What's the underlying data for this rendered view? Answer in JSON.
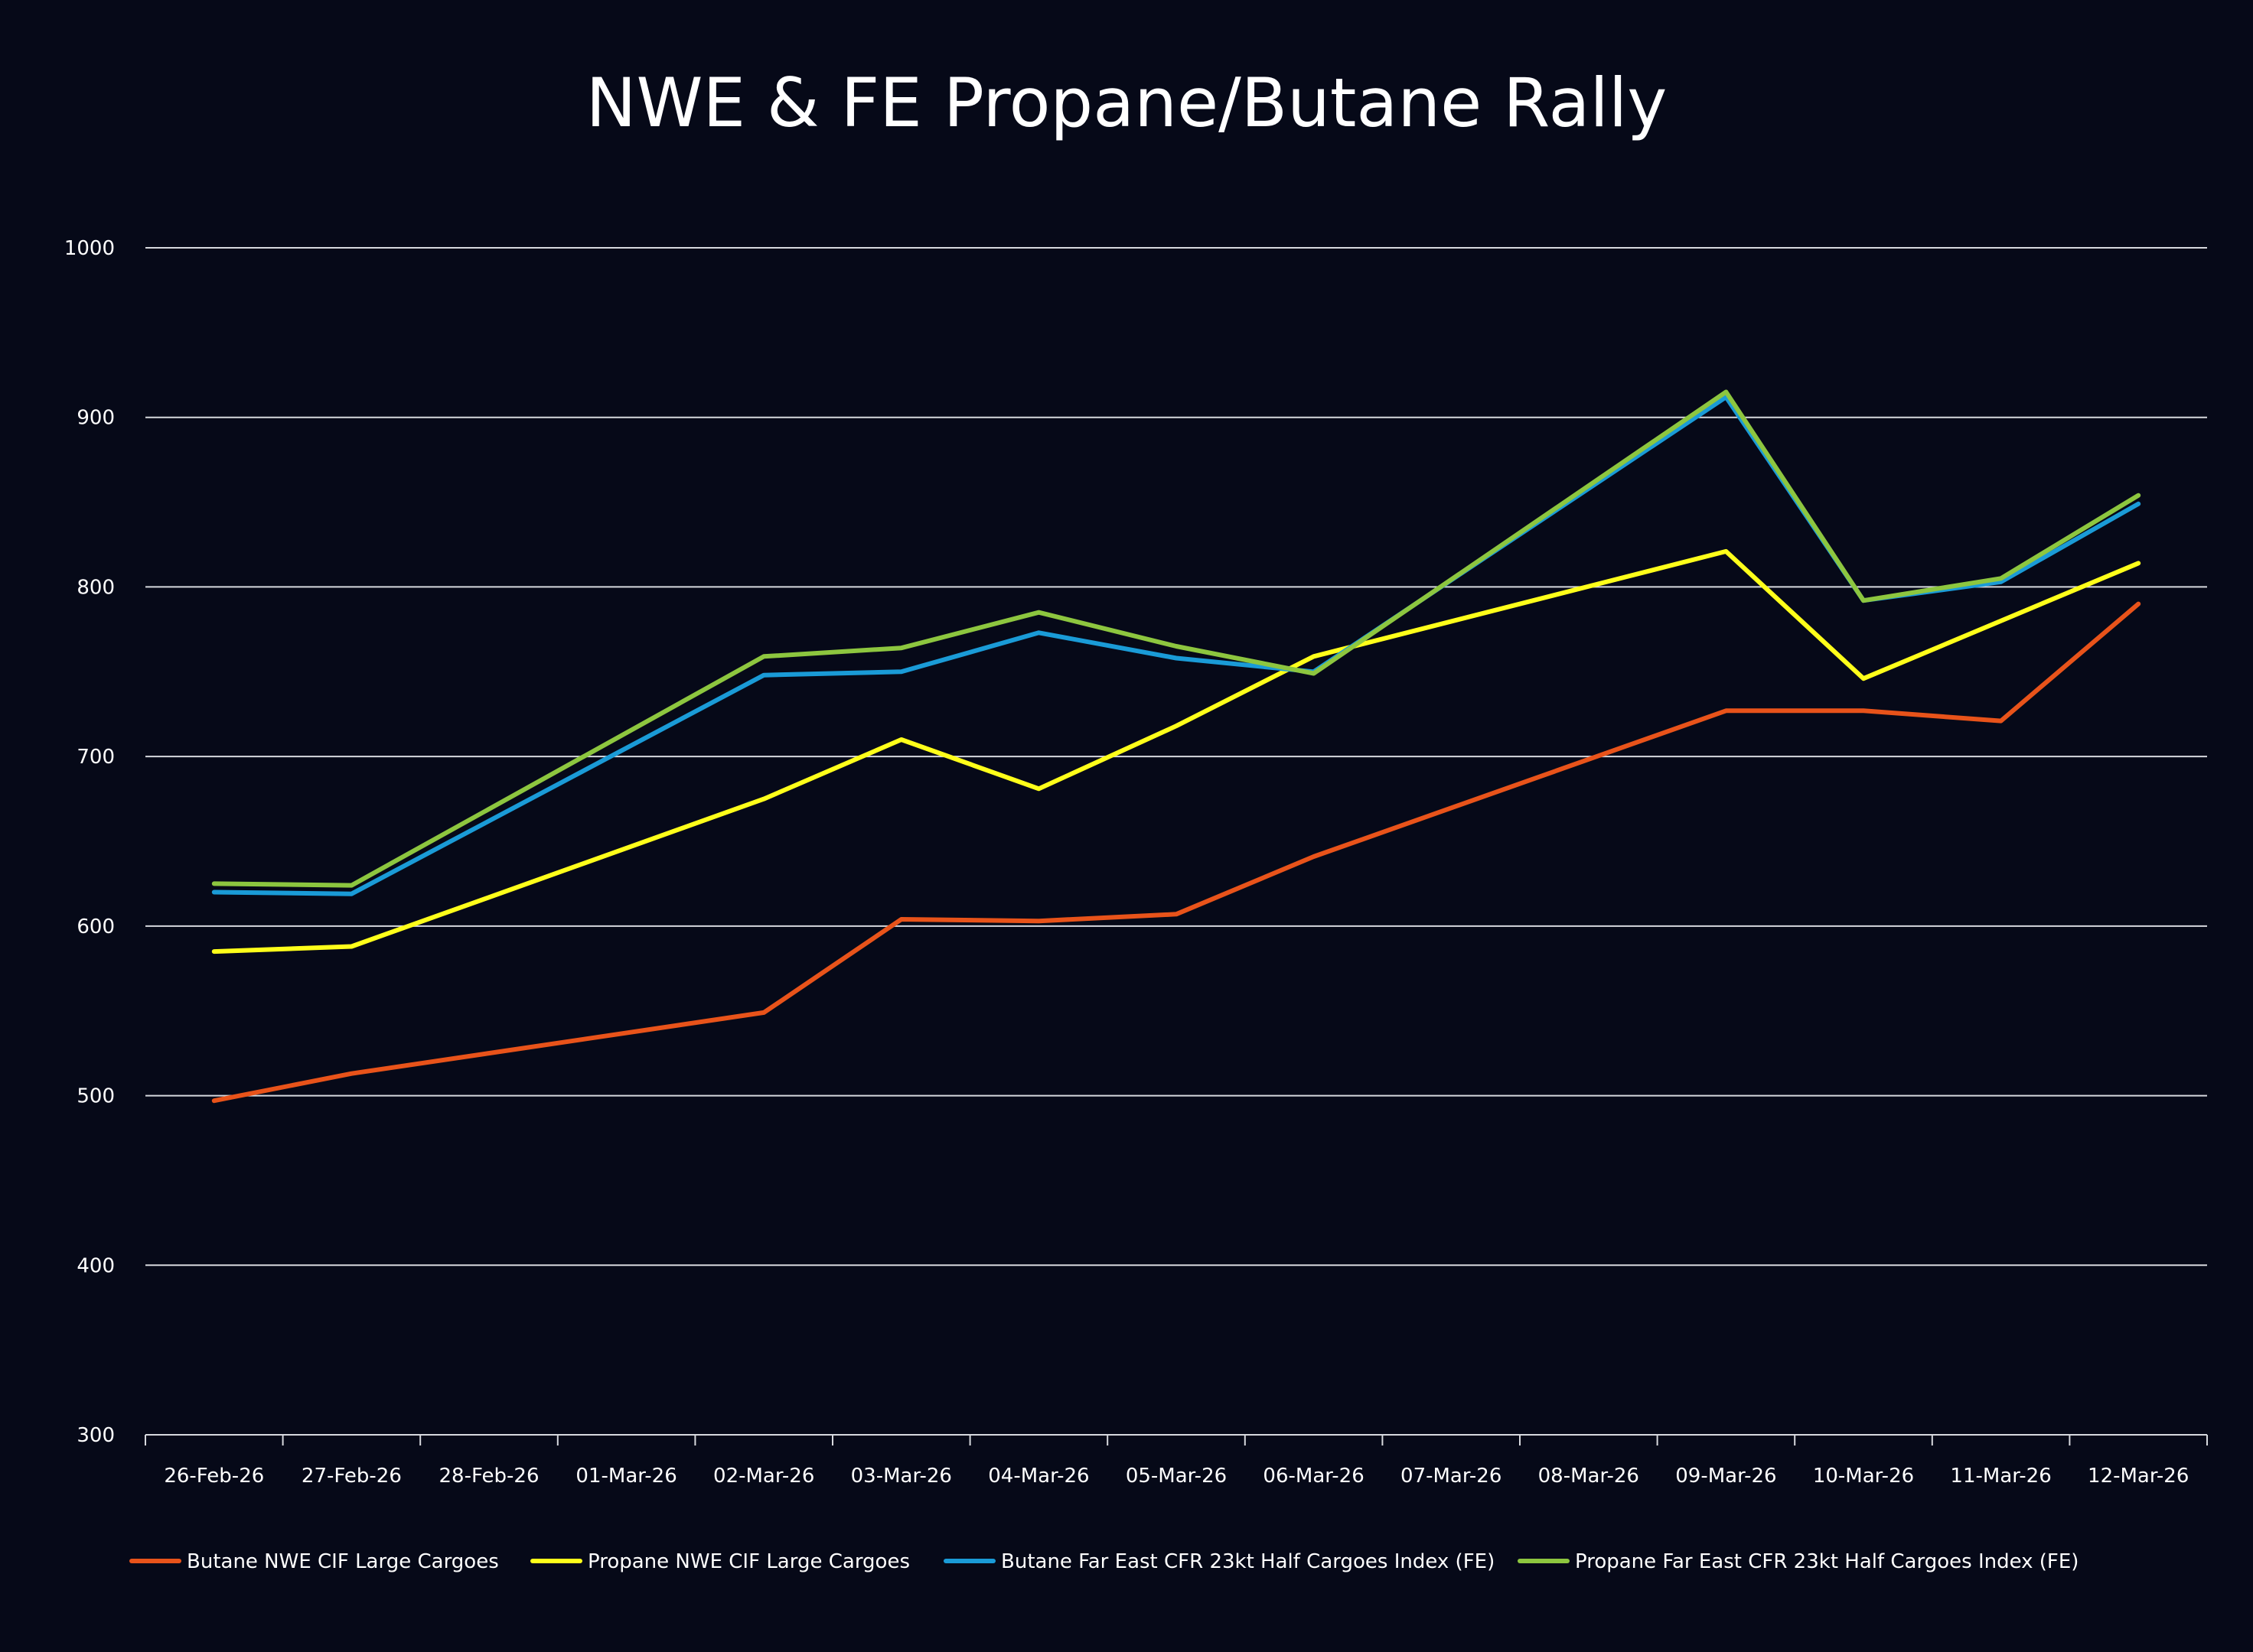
{
  "chart_data": {
    "type": "line",
    "title": "NWE & FE Propane/Butane Rally",
    "xlabel": "",
    "ylabel": "",
    "ylim": [
      300,
      1000
    ],
    "yticks": [
      300,
      400,
      500,
      600,
      700,
      800,
      900,
      1000
    ],
    "grid": true,
    "legend_position": "bottom-left",
    "categories": [
      "26-Feb-26",
      "27-Feb-26",
      "28-Feb-26",
      "01-Mar-26",
      "02-Mar-26",
      "03-Mar-26",
      "04-Mar-26",
      "05-Mar-26",
      "06-Mar-26",
      "07-Mar-26",
      "08-Mar-26",
      "09-Mar-26",
      "10-Mar-26",
      "11-Mar-26",
      "12-Mar-26"
    ],
    "series": [
      {
        "name": "Butane NWE CIF Large Cargoes",
        "color": "#e8531a",
        "values": [
          497,
          513,
          null,
          null,
          549,
          604,
          603,
          607,
          641,
          null,
          null,
          727,
          727,
          721,
          790
        ]
      },
      {
        "name": "Propane NWE CIF Large Cargoes",
        "color": "#ffff1a",
        "values": [
          585,
          588,
          null,
          null,
          675,
          710,
          681,
          718,
          759,
          null,
          null,
          821,
          746,
          null,
          814
        ]
      },
      {
        "name": "Butane Far East CFR 23kt Half Cargoes Index (FE)",
        "color": "#1a9bd7",
        "values": [
          620,
          619,
          null,
          null,
          748,
          750,
          773,
          758,
          750,
          null,
          null,
          912,
          792,
          803,
          849
        ]
      },
      {
        "name": "Propane Far East CFR 23kt Half Cargoes Index (FE)",
        "color": "#8dc63f",
        "values": [
          625,
          624,
          null,
          null,
          759,
          764,
          785,
          765,
          749,
          null,
          null,
          915,
          792,
          805,
          854
        ]
      }
    ]
  }
}
